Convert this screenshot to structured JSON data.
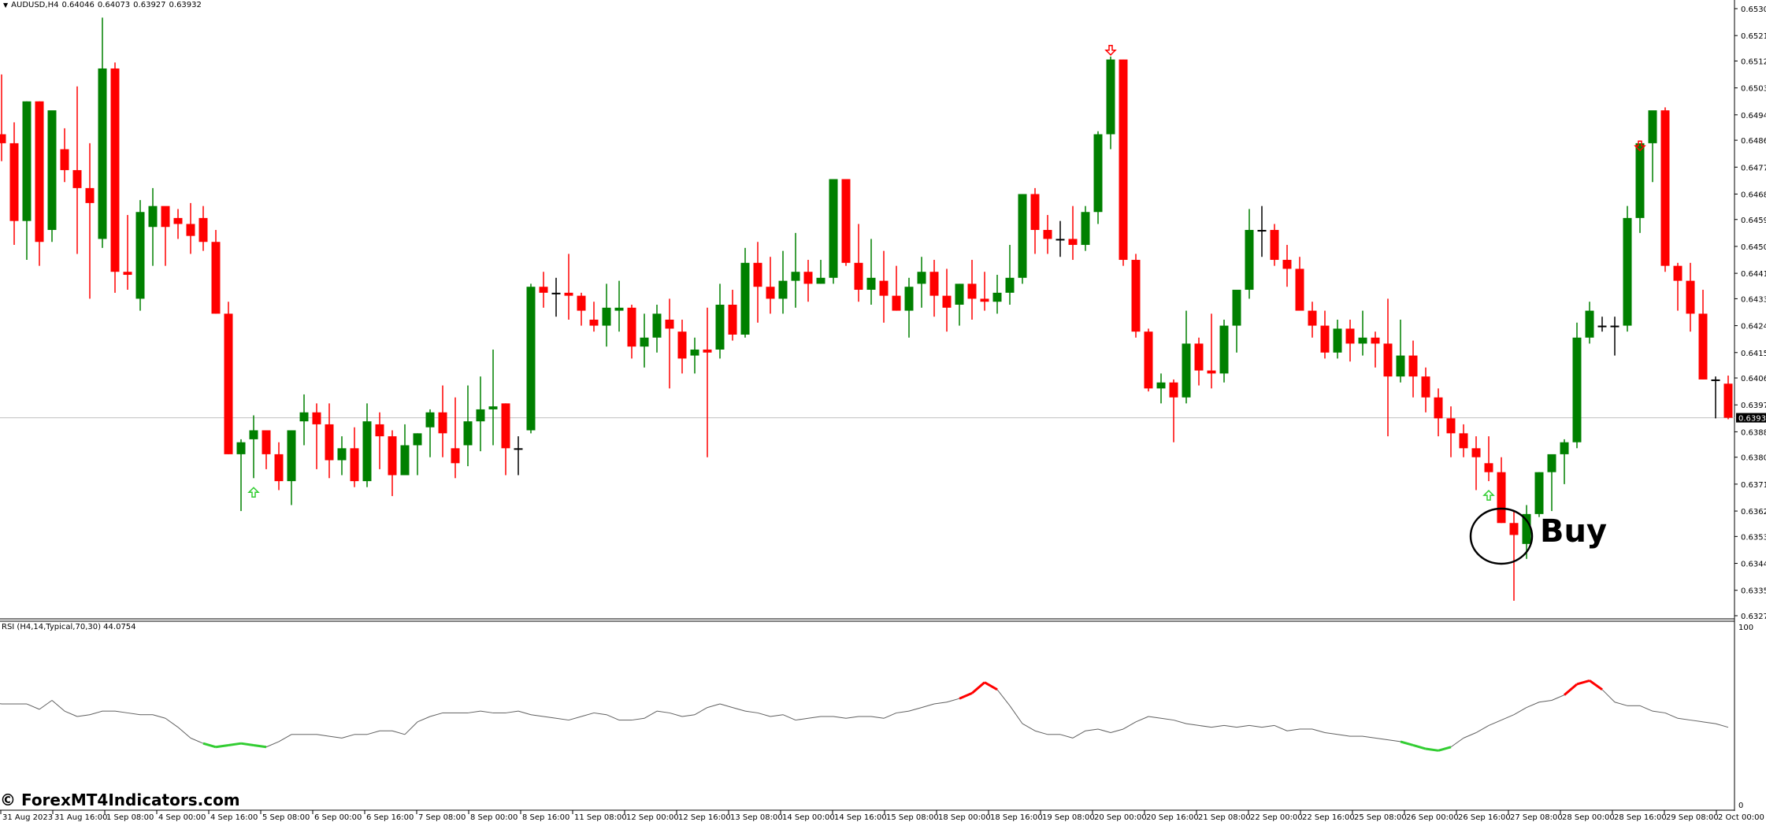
{
  "header": {
    "symbol": "AUDUSD,H4",
    "open": "0.64046",
    "high": "0.64073",
    "low": "0.63927",
    "close": "0.63932"
  },
  "rsi_pane": {
    "label": "RSI (H4,14,Typical,70,30) 44.0754",
    "scale_top": "100",
    "scale_bottom": "0"
  },
  "watermark": "© ForexMT4Indicators.com",
  "annotation": {
    "text": "Buy"
  },
  "current_price": "0.63932",
  "colors": {
    "bull": "#008000",
    "bear": "#ff0000",
    "rsi_line": "#606060",
    "rsi_oversold": "#32cd32",
    "rsi_overbought": "#ff0000",
    "price_line": "#c0c0c0",
    "background": "#ffffff"
  },
  "chart_data": [
    {
      "type": "candlestick",
      "title": "AUDUSD,H4",
      "price_axis_ticks": [
        "0.65300",
        "0.65210",
        "0.65125",
        "0.65035",
        "0.64945",
        "0.64860",
        "0.64770",
        "0.64680",
        "0.64595",
        "0.64505",
        "0.64415",
        "0.64330",
        "0.64240",
        "0.64150",
        "0.64065",
        "0.63975",
        "0.63885",
        "0.63800",
        "0.63710",
        "0.63620",
        "0.63535",
        "0.63445",
        "0.63355",
        "0.63270"
      ],
      "ylim": [
        0.6327,
        0.653
      ],
      "time_axis_ticks": [
        "31 Aug 2023",
        "31 Aug 16:00",
        "1 Sep 08:00",
        "4 Sep 00:00",
        "4 Sep 16:00",
        "5 Sep 08:00",
        "6 Sep 00:00",
        "6 Sep 16:00",
        "7 Sep 08:00",
        "8 Sep 00:00",
        "8 Sep 16:00",
        "11 Sep 08:00",
        "12 Sep 00:00",
        "12 Sep 16:00",
        "13 Sep 08:00",
        "14 Sep 00:00",
        "14 Sep 16:00",
        "15 Sep 08:00",
        "18 Sep 00:00",
        "18 Sep 16:00",
        "19 Sep 08:00",
        "20 Sep 00:00",
        "20 Sep 16:00",
        "21 Sep 08:00",
        "22 Sep 00:00",
        "22 Sep 16:00",
        "25 Sep 08:00",
        "26 Sep 00:00",
        "26 Sep 16:00",
        "27 Sep 08:00",
        "28 Sep 00:00",
        "28 Sep 16:00",
        "29 Sep 08:00",
        "2 Oct 00:00"
      ],
      "candles_ohlc": [
        [
          0.6484,
          0.6488,
          0.6471,
          0.6488
        ],
        [
          0.6488,
          0.6508,
          0.6479,
          0.6485
        ],
        [
          0.6485,
          0.6492,
          0.6451,
          0.6459
        ],
        [
          0.6459,
          0.6499,
          0.6446,
          0.6499
        ],
        [
          0.6499,
          0.6499,
          0.6444,
          0.6452
        ],
        [
          0.6456,
          0.6495,
          0.6452,
          0.6496
        ],
        [
          0.6483,
          0.649,
          0.6472,
          0.6476
        ],
        [
          0.6476,
          0.6504,
          0.6448,
          0.647
        ],
        [
          0.647,
          0.6485,
          0.6433,
          0.6465
        ],
        [
          0.6453,
          0.6527,
          0.645,
          0.651
        ],
        [
          0.651,
          0.6512,
          0.6435,
          0.6442
        ],
        [
          0.6442,
          0.6461,
          0.6436,
          0.6441
        ],
        [
          0.6433,
          0.6466,
          0.6429,
          0.6462
        ],
        [
          0.6457,
          0.647,
          0.6444,
          0.6464
        ],
        [
          0.6464,
          0.6462,
          0.6444,
          0.6457
        ],
        [
          0.646,
          0.6463,
          0.6453,
          0.6458
        ],
        [
          0.6458,
          0.6465,
          0.6448,
          0.6454
        ],
        [
          0.646,
          0.6464,
          0.6449,
          0.6452
        ],
        [
          0.6452,
          0.6456,
          0.6428,
          0.6428
        ],
        [
          0.6428,
          0.6432,
          0.6381,
          0.6381
        ],
        [
          0.6381,
          0.6386,
          0.6362,
          0.6385
        ],
        [
          0.6386,
          0.6394,
          0.6373,
          0.6389
        ],
        [
          0.6389,
          0.6388,
          0.6376,
          0.6381
        ],
        [
          0.6381,
          0.6385,
          0.6369,
          0.6372
        ],
        [
          0.6372,
          0.6389,
          0.6364,
          0.6389
        ],
        [
          0.6392,
          0.6401,
          0.6384,
          0.6395
        ],
        [
          0.6395,
          0.6398,
          0.6376,
          0.6391
        ],
        [
          0.6391,
          0.6398,
          0.6373,
          0.6379
        ],
        [
          0.6379,
          0.6387,
          0.6374,
          0.6383
        ],
        [
          0.6383,
          0.639,
          0.637,
          0.6372
        ],
        [
          0.6372,
          0.6398,
          0.637,
          0.6392
        ],
        [
          0.6391,
          0.6395,
          0.6376,
          0.6387
        ],
        [
          0.6387,
          0.6389,
          0.6367,
          0.6374
        ],
        [
          0.6374,
          0.6391,
          0.6375,
          0.6384
        ],
        [
          0.6384,
          0.6388,
          0.6374,
          0.6388
        ],
        [
          0.639,
          0.6396,
          0.638,
          0.6395
        ],
        [
          0.6395,
          0.6404,
          0.638,
          0.6388
        ],
        [
          0.6383,
          0.64,
          0.6373,
          0.6378
        ],
        [
          0.6384,
          0.6404,
          0.6377,
          0.6392
        ],
        [
          0.6392,
          0.6407,
          0.6382,
          0.6396
        ],
        [
          0.6396,
          0.6416,
          0.6384,
          0.6397
        ],
        [
          0.6398,
          0.6398,
          0.6374,
          0.6383
        ],
        [
          0.6383,
          0.6387,
          0.6374,
          0.6383
        ],
        [
          0.6389,
          0.6438,
          0.6388,
          0.6437
        ],
        [
          0.6437,
          0.6442,
          0.643,
          0.6435
        ],
        [
          0.6435,
          0.644,
          0.6427,
          0.6435
        ],
        [
          0.6435,
          0.6448,
          0.6426,
          0.6434
        ],
        [
          0.6434,
          0.6435,
          0.6424,
          0.6429
        ],
        [
          0.6426,
          0.6432,
          0.6422,
          0.6424
        ],
        [
          0.6424,
          0.6438,
          0.6417,
          0.643
        ],
        [
          0.6429,
          0.6439,
          0.6422,
          0.643
        ],
        [
          0.643,
          0.6431,
          0.6413,
          0.6417
        ],
        [
          0.6417,
          0.6428,
          0.641,
          0.642
        ],
        [
          0.642,
          0.6431,
          0.6415,
          0.6428
        ],
        [
          0.6426,
          0.6433,
          0.6403,
          0.6423
        ],
        [
          0.6422,
          0.6426,
          0.6408,
          0.6413
        ],
        [
          0.6414,
          0.642,
          0.6408,
          0.6416
        ],
        [
          0.6416,
          0.643,
          0.638,
          0.6415
        ],
        [
          0.6416,
          0.6438,
          0.6413,
          0.6431
        ],
        [
          0.6431,
          0.6436,
          0.6419,
          0.6421
        ],
        [
          0.6421,
          0.645,
          0.642,
          0.6445
        ],
        [
          0.6445,
          0.6452,
          0.6425,
          0.6437
        ],
        [
          0.6437,
          0.6447,
          0.6428,
          0.6433
        ],
        [
          0.6433,
          0.6449,
          0.6428,
          0.6439
        ],
        [
          0.6439,
          0.6455,
          0.643,
          0.6442
        ],
        [
          0.6442,
          0.6446,
          0.6432,
          0.6438
        ],
        [
          0.6438,
          0.6446,
          0.6438,
          0.644
        ],
        [
          0.644,
          0.6473,
          0.6438,
          0.6473
        ],
        [
          0.6473,
          0.6473,
          0.6444,
          0.6445
        ],
        [
          0.6445,
          0.6458,
          0.6432,
          0.6436
        ],
        [
          0.6436,
          0.6453,
          0.6431,
          0.644
        ],
        [
          0.6439,
          0.6449,
          0.6425,
          0.6434
        ],
        [
          0.6434,
          0.6444,
          0.6429,
          0.6429
        ],
        [
          0.6429,
          0.644,
          0.642,
          0.6437
        ],
        [
          0.6438,
          0.6447,
          0.643,
          0.6442
        ],
        [
          0.6442,
          0.6446,
          0.6427,
          0.6434
        ],
        [
          0.6434,
          0.6443,
          0.6422,
          0.643
        ],
        [
          0.6431,
          0.6438,
          0.6424,
          0.6438
        ],
        [
          0.6438,
          0.6446,
          0.6426,
          0.6433
        ],
        [
          0.6433,
          0.6442,
          0.6429,
          0.6432
        ],
        [
          0.6432,
          0.6441,
          0.6428,
          0.6435
        ],
        [
          0.6435,
          0.6451,
          0.6431,
          0.644
        ],
        [
          0.644,
          0.6468,
          0.6438,
          0.6468
        ],
        [
          0.6468,
          0.647,
          0.6448,
          0.6456
        ],
        [
          0.6456,
          0.6461,
          0.6448,
          0.6453
        ],
        [
          0.6453,
          0.6459,
          0.6447,
          0.6453
        ],
        [
          0.6453,
          0.6464,
          0.6446,
          0.6451
        ],
        [
          0.6451,
          0.6464,
          0.6449,
          0.6462
        ],
        [
          0.6462,
          0.6489,
          0.6458,
          0.6488
        ],
        [
          0.6488,
          0.6514,
          0.6483,
          0.6513
        ],
        [
          0.6513,
          0.6513,
          0.6444,
          0.6446
        ],
        [
          0.6446,
          0.6448,
          0.642,
          0.6422
        ],
        [
          0.6422,
          0.6423,
          0.6402,
          0.6403
        ],
        [
          0.6403,
          0.6408,
          0.6398,
          0.6405
        ],
        [
          0.6405,
          0.6406,
          0.6385,
          0.64
        ],
        [
          0.64,
          0.6429,
          0.6398,
          0.6418
        ],
        [
          0.6418,
          0.642,
          0.6404,
          0.6409
        ],
        [
          0.6409,
          0.6428,
          0.6403,
          0.6408
        ],
        [
          0.6408,
          0.6426,
          0.6405,
          0.6424
        ],
        [
          0.6424,
          0.6434,
          0.6415,
          0.6436
        ],
        [
          0.6436,
          0.6463,
          0.6433,
          0.6456
        ],
        [
          0.6456,
          0.6464,
          0.6447,
          0.6456
        ],
        [
          0.6456,
          0.6458,
          0.6444,
          0.6446
        ],
        [
          0.6446,
          0.6451,
          0.6437,
          0.6443
        ],
        [
          0.6443,
          0.6447,
          0.643,
          0.6429
        ],
        [
          0.6429,
          0.6432,
          0.642,
          0.6424
        ],
        [
          0.6424,
          0.6429,
          0.6413,
          0.6415
        ],
        [
          0.6415,
          0.6426,
          0.6413,
          0.6423
        ],
        [
          0.6423,
          0.6426,
          0.6412,
          0.6418
        ],
        [
          0.6418,
          0.6429,
          0.6414,
          0.642
        ],
        [
          0.642,
          0.6422,
          0.641,
          0.6418
        ],
        [
          0.6418,
          0.6433,
          0.6387,
          0.6407
        ],
        [
          0.6407,
          0.6426,
          0.6405,
          0.6414
        ],
        [
          0.6414,
          0.6419,
          0.64,
          0.6407
        ],
        [
          0.6407,
          0.641,
          0.6395,
          0.64
        ],
        [
          0.64,
          0.6403,
          0.6387,
          0.6393
        ],
        [
          0.6393,
          0.6397,
          0.638,
          0.6388
        ],
        [
          0.6388,
          0.6391,
          0.638,
          0.6383
        ],
        [
          0.6383,
          0.6387,
          0.6369,
          0.638
        ],
        [
          0.6378,
          0.6387,
          0.6372,
          0.6375
        ],
        [
          0.6375,
          0.638,
          0.6358,
          0.6358
        ],
        [
          0.6358,
          0.6362,
          0.6332,
          0.6354
        ],
        [
          0.6351,
          0.6364,
          0.6346,
          0.6361
        ],
        [
          0.6361,
          0.6375,
          0.636,
          0.6375
        ],
        [
          0.6375,
          0.638,
          0.6362,
          0.6381
        ],
        [
          0.6381,
          0.6386,
          0.6371,
          0.6385
        ],
        [
          0.6385,
          0.6425,
          0.6383,
          0.642
        ],
        [
          0.642,
          0.6432,
          0.6418,
          0.6429
        ],
        [
          0.6424,
          0.6427,
          0.6422,
          0.6424
        ],
        [
          0.6424,
          0.6427,
          0.6414,
          0.6424
        ],
        [
          0.6424,
          0.6464,
          0.6422,
          0.646
        ],
        [
          0.646,
          0.6482,
          0.6455,
          0.6485
        ],
        [
          0.6485,
          0.6495,
          0.6472,
          0.6496
        ],
        [
          0.6496,
          0.6497,
          0.6442,
          0.6444
        ],
        [
          0.6444,
          0.6445,
          0.6429,
          0.6439
        ],
        [
          0.6439,
          0.6445,
          0.6422,
          0.6428
        ],
        [
          0.6428,
          0.6436,
          0.6406,
          0.6406
        ],
        [
          0.6406,
          0.6407,
          0.6393,
          0.6406
        ],
        [
          0.64046,
          0.64073,
          0.63927,
          0.63932
        ]
      ],
      "signals": [
        {
          "type": "buy-arrow",
          "index": 21,
          "color": "#32cd32"
        },
        {
          "type": "sell-arrow",
          "index": 89,
          "color": "#ff0000"
        },
        {
          "type": "buy-arrow",
          "index": 119,
          "color": "#32cd32"
        },
        {
          "type": "sell-arrow",
          "index": 131,
          "color": "#ff0000"
        }
      ]
    },
    {
      "type": "line",
      "title": "RSI (H4,14,Typical,70,30)",
      "ylim": [
        0,
        100
      ],
      "last_value": 44.0754,
      "overbought": 70,
      "oversold": 30,
      "values": [
        56,
        58,
        60,
        57,
        58,
        57,
        57,
        57,
        54,
        59,
        53,
        50,
        51,
        53,
        53,
        52,
        51,
        51,
        49,
        44,
        38,
        35,
        33,
        34,
        35,
        34,
        33,
        36,
        40,
        40,
        40,
        39,
        38,
        40,
        40,
        42,
        42,
        40,
        47,
        50,
        52,
        52,
        52,
        53,
        52,
        52,
        53,
        51,
        50,
        49,
        48,
        50,
        52,
        51,
        48,
        48,
        49,
        53,
        52,
        50,
        51,
        55,
        57,
        55,
        53,
        52,
        50,
        51,
        48,
        49,
        50,
        50,
        49,
        50,
        50,
        49,
        52,
        53,
        55,
        57,
        58,
        60,
        63,
        69,
        65,
        56,
        46,
        42,
        40,
        40,
        38,
        42,
        43,
        41,
        43,
        47,
        50,
        49,
        48,
        46,
        45,
        44,
        45,
        44,
        45,
        44,
        45,
        42,
        43,
        43,
        41,
        40,
        39,
        39,
        38,
        37,
        36,
        34,
        32,
        31,
        33,
        38,
        41,
        45,
        48,
        51,
        55,
        58,
        59,
        62,
        68,
        70,
        65,
        58,
        56,
        56,
        53,
        52,
        49,
        48,
        47,
        46,
        44
      ]
    }
  ]
}
